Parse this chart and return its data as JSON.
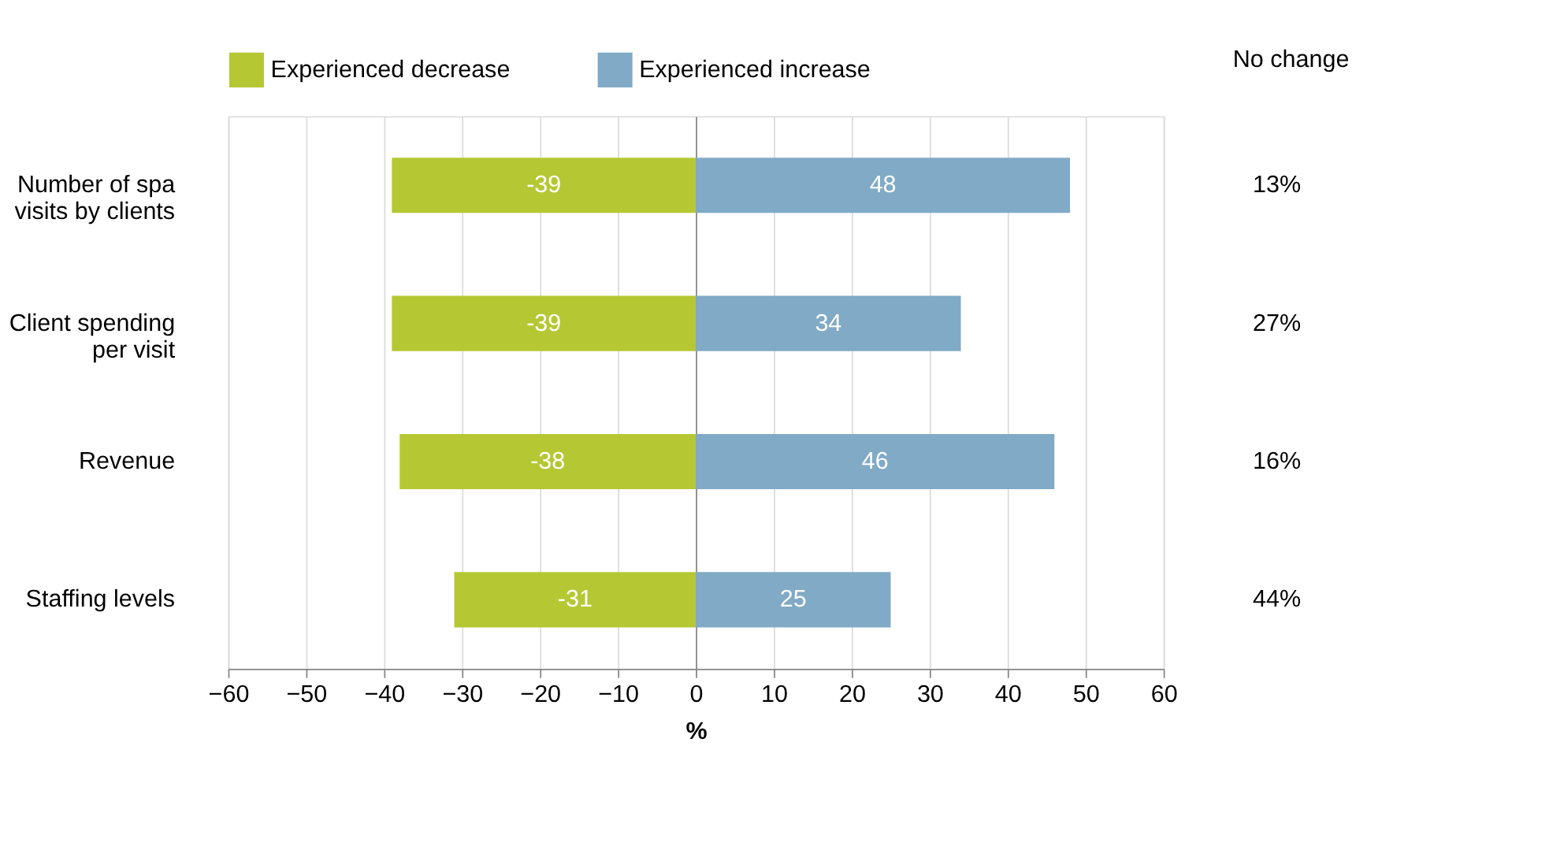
{
  "chart_data": {
    "type": "bar",
    "orientation": "horizontal",
    "xlabel": "%",
    "categories": [
      "Number of spa visits by clients",
      "Client spending per visit",
      "Revenue",
      "Staffing levels"
    ],
    "series": [
      {
        "name": "Experienced decrease",
        "color": "#b5c833",
        "values": [
          -39,
          -39,
          -38,
          -31
        ]
      },
      {
        "name": "Experienced increase",
        "color": "#80aac5",
        "values": [
          48,
          34,
          46,
          25
        ]
      }
    ],
    "annotations": [
      "No change",
      "13%",
      "27%",
      "16%",
      "44%"
    ],
    "stacked": true,
    "data_labels": true,
    "xlim": [
      -60,
      60
    ],
    "xticks": [
      -60,
      -50,
      -40,
      -30,
      -20,
      -10,
      0,
      10,
      20,
      30,
      40,
      50,
      60
    ],
    "grid": "x",
    "legend": "top"
  }
}
